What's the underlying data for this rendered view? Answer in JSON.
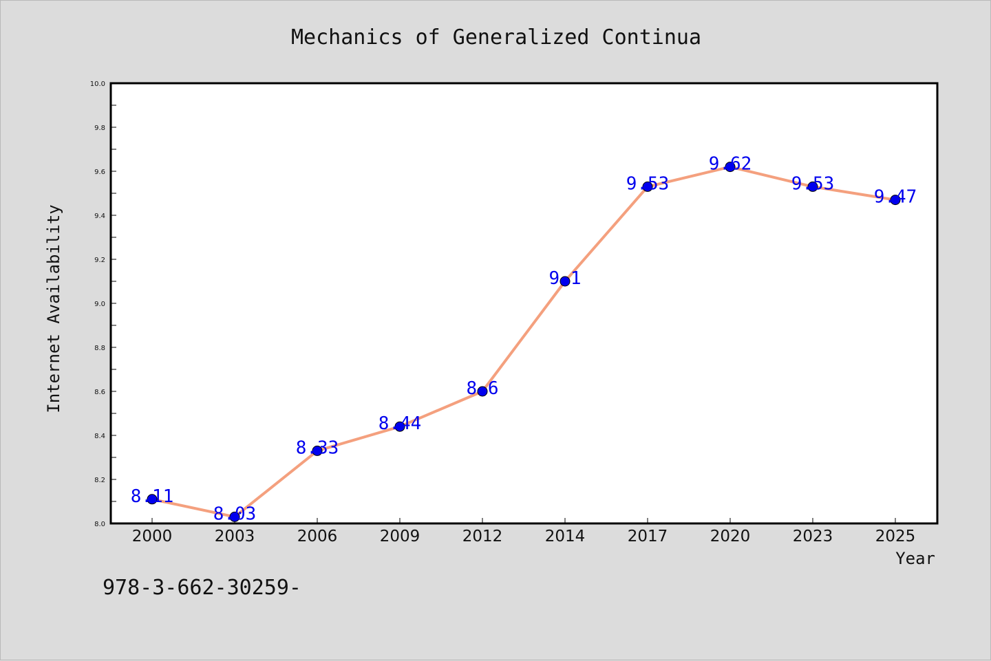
{
  "chart_data": {
    "type": "line",
    "title": "Mechanics of Generalized Continua",
    "xlabel": "Year",
    "ylabel": "Internet Availability",
    "categories": [
      "2000",
      "2003",
      "2006",
      "2009",
      "2012",
      "2014",
      "2017",
      "2020",
      "2023",
      "2025"
    ],
    "series": [
      {
        "values": [
          8.11,
          8.03,
          8.33,
          8.44,
          8.6,
          9.1,
          9.53,
          9.62,
          9.53,
          9.47
        ],
        "data_labels": [
          "8.11",
          "8.03",
          "8.33",
          "8.44",
          "8.6",
          "9.1",
          "9.53",
          "9.62",
          "9.53",
          "9.47"
        ]
      }
    ],
    "ylim": [
      8.0,
      10.0
    ],
    "yticks": [
      "8.0",
      "8.2",
      "8.4",
      "8.6",
      "8.8",
      "9.0",
      "9.2",
      "9.4",
      "9.6",
      "9.8",
      "10.0"
    ],
    "grid": false,
    "colors": {
      "line": "#f4a07e",
      "marker": "#0000ee",
      "label": "#0000ee"
    }
  },
  "footer": {
    "isbn": "978-3-662-30259-"
  }
}
